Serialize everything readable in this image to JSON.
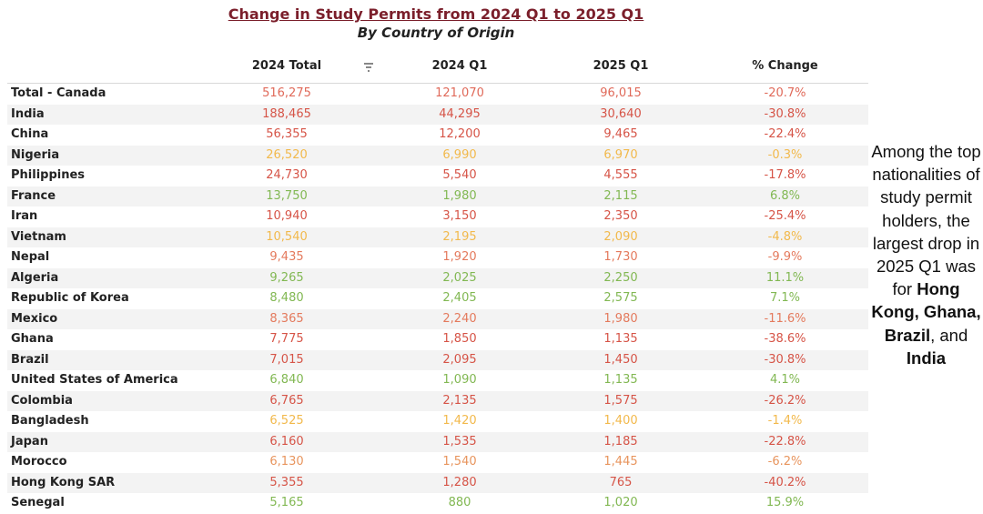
{
  "chart_data": {
    "type": "table",
    "title": "Change in Study Permits from 2024 Q1 to 2025 Q1",
    "subtitle": "By Country of Origin",
    "columns": [
      "2024 Total",
      "2024 Q1",
      "2025 Q1",
      "% Change"
    ],
    "rows": [
      {
        "country": "Total - Canada",
        "total_2024": "516,275",
        "q1_2024": "121,070",
        "q1_2025": "96,015",
        "pct_change": "-20.7%"
      },
      {
        "country": "India",
        "total_2024": "188,465",
        "q1_2024": "44,295",
        "q1_2025": "30,640",
        "pct_change": "-30.8%"
      },
      {
        "country": "China",
        "total_2024": "56,355",
        "q1_2024": "12,200",
        "q1_2025": "9,465",
        "pct_change": "-22.4%"
      },
      {
        "country": "Nigeria",
        "total_2024": "26,520",
        "q1_2024": "6,990",
        "q1_2025": "6,970",
        "pct_change": "-0.3%"
      },
      {
        "country": "Philippines",
        "total_2024": "24,730",
        "q1_2024": "5,540",
        "q1_2025": "4,555",
        "pct_change": "-17.8%"
      },
      {
        "country": "France",
        "total_2024": "13,750",
        "q1_2024": "1,980",
        "q1_2025": "2,115",
        "pct_change": "6.8%"
      },
      {
        "country": "Iran",
        "total_2024": "10,940",
        "q1_2024": "3,150",
        "q1_2025": "2,350",
        "pct_change": "-25.4%"
      },
      {
        "country": "Vietnam",
        "total_2024": "10,540",
        "q1_2024": "2,195",
        "q1_2025": "2,090",
        "pct_change": "-4.8%"
      },
      {
        "country": "Nepal",
        "total_2024": "9,435",
        "q1_2024": "1,920",
        "q1_2025": "1,730",
        "pct_change": "-9.9%"
      },
      {
        "country": "Algeria",
        "total_2024": "9,265",
        "q1_2024": "2,025",
        "q1_2025": "2,250",
        "pct_change": "11.1%"
      },
      {
        "country": "Republic of Korea",
        "total_2024": "8,480",
        "q1_2024": "2,405",
        "q1_2025": "2,575",
        "pct_change": "7.1%"
      },
      {
        "country": "Mexico",
        "total_2024": "8,365",
        "q1_2024": "2,240",
        "q1_2025": "1,980",
        "pct_change": "-11.6%"
      },
      {
        "country": "Ghana",
        "total_2024": "7,775",
        "q1_2024": "1,850",
        "q1_2025": "1,135",
        "pct_change": "-38.6%"
      },
      {
        "country": "Brazil",
        "total_2024": "7,015",
        "q1_2024": "2,095",
        "q1_2025": "1,450",
        "pct_change": "-30.8%"
      },
      {
        "country": "United States of America",
        "total_2024": "6,840",
        "q1_2024": "1,090",
        "q1_2025": "1,135",
        "pct_change": "4.1%"
      },
      {
        "country": "Colombia",
        "total_2024": "6,765",
        "q1_2024": "2,135",
        "q1_2025": "1,575",
        "pct_change": "-26.2%"
      },
      {
        "country": "Bangladesh",
        "total_2024": "6,525",
        "q1_2024": "1,420",
        "q1_2025": "1,400",
        "pct_change": "-1.4%"
      },
      {
        "country": "Japan",
        "total_2024": "6,160",
        "q1_2024": "1,535",
        "q1_2025": "1,185",
        "pct_change": "-22.8%"
      },
      {
        "country": "Morocco",
        "total_2024": "6,130",
        "q1_2024": "1,540",
        "q1_2025": "1,445",
        "pct_change": "-6.2%"
      },
      {
        "country": "Hong Kong SAR",
        "total_2024": "5,355",
        "q1_2024": "1,280",
        "q1_2025": "765",
        "pct_change": "-40.2%"
      },
      {
        "country": "Senegal",
        "total_2024": "5,165",
        "q1_2024": "880",
        "q1_2025": "1,020",
        "pct_change": "15.9%"
      }
    ],
    "row_colors": [
      "#e06a5a",
      "#d65447",
      "#d65447",
      "#f2b94c",
      "#d65447",
      "#82b853",
      "#d65447",
      "#f2b94c",
      "#e47a5d",
      "#82b853",
      "#82b853",
      "#e47a5d",
      "#d65447",
      "#d65447",
      "#82b853",
      "#d65447",
      "#f2b94c",
      "#d65447",
      "#e8955e",
      "#d65447",
      "#82b853"
    ]
  },
  "side_note": {
    "text_before": "Among the top nationalities of study permit holders, the largest drop in 2025 Q1 was for ",
    "bold_1": "Hong Kong,",
    "bold_2": "Ghana,",
    "bold_3": "Brazil",
    "text_between": ", and ",
    "bold_4": "India"
  },
  "icons": {
    "filter": "filter-lines-icon"
  }
}
